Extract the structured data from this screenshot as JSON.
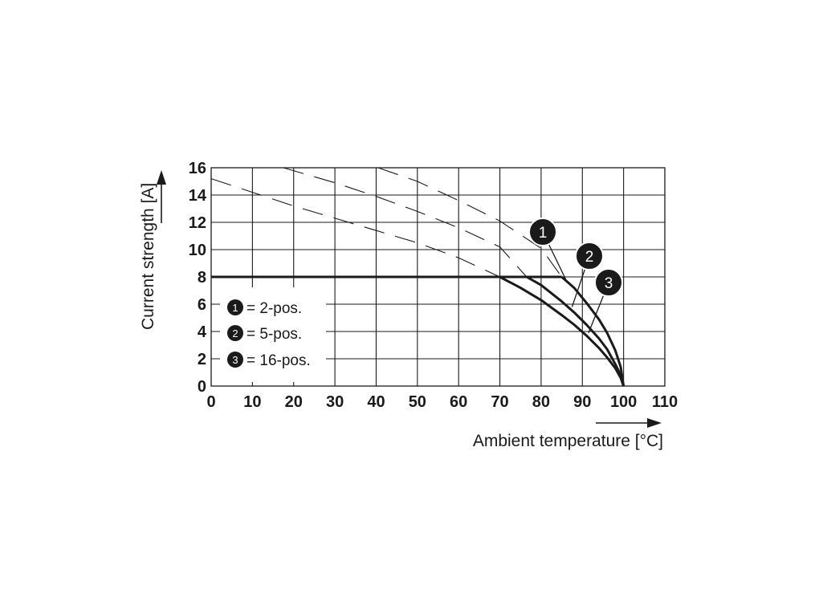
{
  "chart_data": {
    "type": "line",
    "xlabel": "Ambient temperature [°C]",
    "ylabel": "Current strength [A]",
    "xlim": [
      0,
      110
    ],
    "ylim": [
      0,
      16
    ],
    "x_ticks": [
      0,
      10,
      20,
      30,
      40,
      50,
      60,
      70,
      80,
      90,
      100,
      110
    ],
    "y_ticks": [
      0,
      2,
      4,
      6,
      8,
      10,
      12,
      14,
      16
    ],
    "grid": true,
    "legend": {
      "placement": "lower-left",
      "entries": [
        {
          "badge": "1",
          "label": "= 2-pos."
        },
        {
          "badge": "2",
          "label": "= 5-pos."
        },
        {
          "badge": "3",
          "label": "= 16-pos."
        }
      ]
    },
    "limit_line": {
      "x": [
        0,
        85
      ],
      "y": [
        8,
        8
      ]
    },
    "series": [
      {
        "badge": "1",
        "solid": {
          "x": [
            70,
            75,
            80,
            85,
            88,
            91,
            94,
            96,
            98,
            99.3,
            100
          ],
          "y": [
            8,
            7.2,
            6.3,
            5.2,
            4.5,
            3.7,
            2.8,
            2.1,
            1.3,
            0.6,
            0
          ]
        },
        "dashed": {
          "x": [
            0,
            10,
            20,
            30,
            40,
            50,
            60,
            70
          ],
          "y": [
            15.2,
            14.2,
            13.2,
            12.3,
            11.4,
            10.5,
            9.4,
            8
          ]
        }
      },
      {
        "badge": "2",
        "solid": {
          "x": [
            76.5,
            80,
            85,
            88,
            91,
            94,
            96,
            98,
            99.3,
            100
          ],
          "y": [
            8,
            7.4,
            6.2,
            5.4,
            4.5,
            3.5,
            2.7,
            1.6,
            0.8,
            0
          ]
        },
        "dashed": {
          "x": [
            17.5,
            30,
            40,
            50,
            60,
            70,
            76.5
          ],
          "y": [
            16,
            14.9,
            13.9,
            12.8,
            11.6,
            10.2,
            8
          ]
        }
      },
      {
        "badge": "3",
        "solid": {
          "x": [
            85,
            88,
            91,
            94,
            96,
            98,
            99.3,
            100
          ],
          "y": [
            8,
            7.2,
            6.1,
            4.9,
            3.9,
            2.6,
            1.4,
            0
          ]
        },
        "dashed": {
          "x": [
            40.5,
            50,
            60,
            70,
            80,
            85
          ],
          "y": [
            16,
            15.0,
            13.6,
            12.1,
            10.1,
            8
          ]
        }
      }
    ],
    "annotations": [
      {
        "badge": "1",
        "target": {
          "x": 86,
          "y": 7.8
        }
      },
      {
        "badge": "2",
        "target": {
          "x": 87.5,
          "y": 5.8
        }
      },
      {
        "badge": "3",
        "target": {
          "x": 91.5,
          "y": 3.9
        }
      }
    ]
  }
}
